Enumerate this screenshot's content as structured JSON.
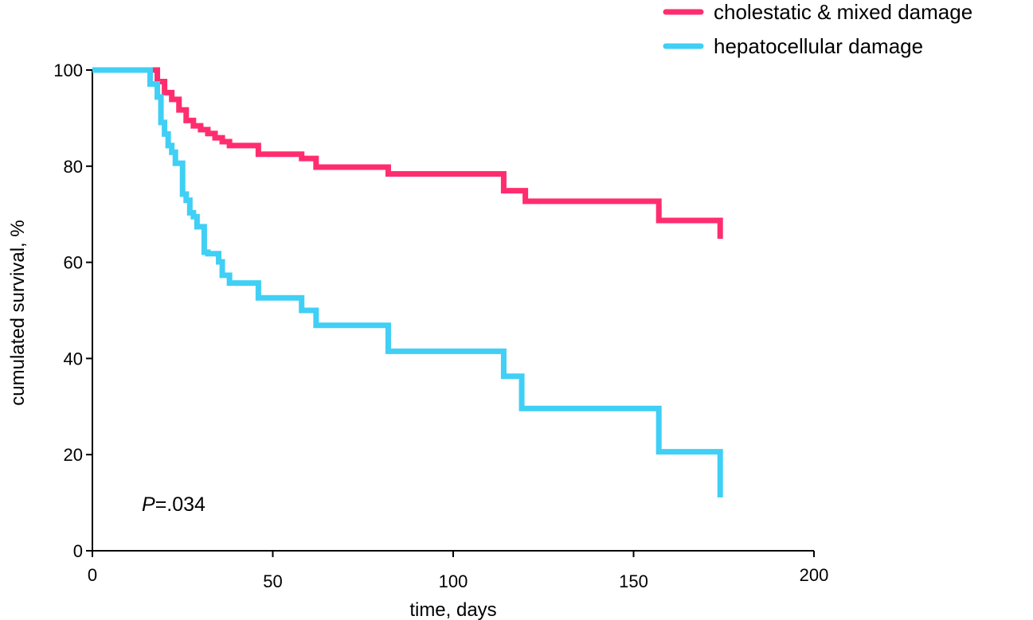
{
  "chart_data": {
    "type": "line",
    "step": true,
    "xlabel": "time, days",
    "ylabel": "cumulated survival, %",
    "xlim": [
      0,
      200
    ],
    "ylim": [
      0,
      100
    ],
    "xticks": [
      0,
      50,
      100,
      150,
      200
    ],
    "yticks": [
      0,
      20,
      40,
      60,
      80,
      100
    ],
    "grid": false,
    "legend_position": "top-right",
    "annotation": {
      "prefix": "P",
      "text": "=.034"
    },
    "series": [
      {
        "name": "cholestatic & mixed damage",
        "color": "#ff2d6f",
        "x": [
          0,
          16,
          18,
          20,
          22,
          24,
          26,
          28,
          30,
          32,
          34,
          36,
          38,
          46,
          58,
          62,
          82,
          114,
          120,
          157,
          174,
          174
        ],
        "y": [
          100,
          100,
          97.6,
          95.3,
          93.9,
          91.7,
          89.5,
          88.4,
          87.6,
          86.8,
          85.9,
          85.1,
          84.3,
          82.5,
          81.6,
          79.8,
          78.4,
          74.9,
          72.7,
          68.7,
          68.7,
          64.9
        ]
      },
      {
        "name": "hepatocellular damage",
        "color": "#40cff5",
        "x": [
          0,
          14,
          16,
          18,
          19,
          20,
          21,
          22,
          23,
          25,
          26,
          27,
          28,
          29,
          31,
          32,
          35,
          36,
          38,
          46,
          58,
          62,
          82,
          114,
          119,
          157,
          174,
          174
        ],
        "y": [
          100,
          100,
          97.1,
          94.4,
          89.1,
          86.7,
          84.3,
          82.9,
          80.6,
          74.2,
          72.9,
          70.3,
          69.5,
          67.4,
          62.1,
          61.8,
          60.1,
          57.3,
          55.7,
          52.6,
          50.0,
          46.9,
          41.5,
          36.3,
          29.6,
          20.6,
          20.6,
          11.1
        ]
      }
    ]
  }
}
